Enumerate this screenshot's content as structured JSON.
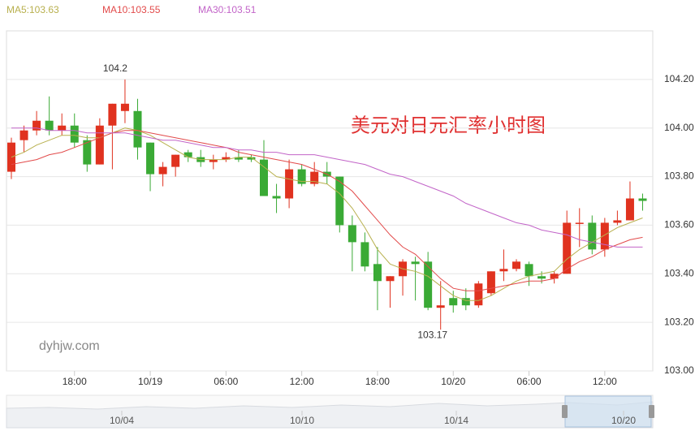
{
  "chart_data": {
    "type": "candlestick",
    "title": "美元对日元汇率小时图",
    "watermark": "dyhjw.com",
    "categories": [
      null,
      null,
      null,
      null,
      null,
      "18:00",
      null,
      null,
      null,
      null,
      null,
      "10/19",
      null,
      null,
      null,
      null,
      null,
      "06:00",
      null,
      null,
      null,
      null,
      null,
      "12:00",
      null,
      null,
      null,
      null,
      null,
      "18:00",
      null,
      null,
      null,
      null,
      null,
      "10/20",
      null,
      null,
      null,
      null,
      null,
      "06:00",
      null,
      null,
      null,
      null,
      null,
      "12:00",
      null,
      null,
      null
    ],
    "open": [
      103.82,
      103.95,
      103.99,
      104.03,
      103.99,
      104.01,
      103.95,
      103.85,
      104.01,
      104.07,
      104.07,
      103.94,
      103.81,
      103.84,
      103.9,
      103.88,
      103.86,
      103.87,
      103.88,
      103.88,
      103.87,
      103.72,
      103.71,
      103.83,
      103.77,
      103.82,
      103.8,
      103.6,
      103.53,
      103.44,
      103.37,
      103.39,
      103.45,
      103.45,
      103.26,
      103.3,
      103.3,
      103.27,
      103.32,
      103.41,
      103.42,
      103.44,
      103.39,
      103.38,
      103.4,
      103.61,
      103.61,
      103.5,
      103.61,
      103.62,
      103.71
    ],
    "close": [
      103.94,
      103.99,
      104.03,
      103.99,
      104.01,
      103.94,
      103.85,
      104.01,
      104.1,
      104.1,
      103.92,
      103.81,
      103.84,
      103.89,
      103.88,
      103.86,
      103.87,
      103.88,
      103.87,
      103.87,
      103.72,
      103.71,
      103.83,
      103.77,
      103.82,
      103.8,
      103.6,
      103.53,
      103.43,
      103.37,
      103.39,
      103.45,
      103.44,
      103.26,
      103.27,
      103.27,
      103.27,
      103.36,
      103.41,
      103.42,
      103.45,
      103.39,
      103.38,
      103.4,
      103.61,
      103.61,
      103.5,
      103.61,
      103.62,
      103.71,
      103.7
    ],
    "high": [
      103.96,
      104.01,
      104.07,
      104.13,
      104.06,
      104.06,
      103.97,
      104.04,
      104.1,
      104.2,
      104.12,
      103.94,
      103.86,
      103.89,
      103.91,
      103.91,
      103.89,
      103.9,
      103.91,
      103.89,
      103.95,
      103.77,
      103.87,
      103.85,
      103.86,
      103.86,
      103.8,
      103.64,
      103.57,
      103.51,
      103.39,
      103.46,
      103.47,
      103.49,
      103.37,
      103.33,
      103.34,
      103.37,
      103.41,
      103.5,
      103.46,
      103.45,
      103.41,
      103.41,
      103.66,
      103.67,
      103.64,
      103.63,
      103.66,
      103.78,
      103.73
    ],
    "low": [
      103.79,
      103.9,
      103.97,
      103.97,
      103.97,
      103.92,
      103.82,
      103.85,
      103.83,
      104.02,
      103.87,
      103.74,
      103.76,
      103.8,
      103.86,
      103.84,
      103.83,
      103.86,
      103.86,
      103.86,
      103.72,
      103.65,
      103.67,
      103.76,
      103.76,
      103.77,
      103.57,
      103.41,
      103.41,
      103.25,
      103.26,
      103.31,
      103.29,
      103.25,
      103.17,
      103.24,
      103.25,
      103.26,
      103.31,
      103.37,
      103.41,
      103.35,
      103.36,
      103.36,
      103.4,
      103.51,
      103.48,
      103.47,
      103.6,
      103.62,
      103.66
    ],
    "up_color": "#e0321f",
    "down_color": "#3aaa35",
    "max_label": "104.2",
    "min_label": "103.17",
    "series": [
      {
        "name": "MA5:103.63",
        "color": "#b8b04e",
        "values": [
          103.88,
          103.9,
          103.93,
          103.95,
          103.97,
          103.97,
          103.96,
          103.96,
          103.98,
          104.0,
          103.99,
          103.97,
          103.94,
          103.91,
          103.88,
          103.87,
          103.87,
          103.87,
          103.88,
          103.88,
          103.84,
          103.8,
          103.79,
          103.78,
          103.78,
          103.77,
          103.73,
          103.67,
          103.59,
          103.5,
          103.44,
          103.42,
          103.41,
          103.39,
          103.35,
          103.31,
          103.29,
          103.29,
          103.31,
          103.34,
          103.37,
          103.39,
          103.4,
          103.41,
          103.46,
          103.5,
          103.53,
          103.56,
          103.59,
          103.61,
          103.63
        ]
      },
      {
        "name": "MA10:103.55",
        "color": "#e24a4a",
        "values": [
          103.85,
          103.86,
          103.87,
          103.89,
          103.9,
          103.92,
          103.94,
          103.96,
          103.98,
          103.99,
          103.99,
          103.98,
          103.97,
          103.96,
          103.95,
          103.94,
          103.93,
          103.92,
          103.9,
          103.89,
          103.88,
          103.87,
          103.86,
          103.85,
          103.83,
          103.81,
          103.78,
          103.74,
          103.68,
          103.62,
          103.56,
          103.51,
          103.48,
          103.43,
          103.38,
          103.34,
          103.33,
          103.33,
          103.34,
          103.35,
          103.36,
          103.37,
          103.37,
          103.38,
          103.42,
          103.45,
          103.47,
          103.5,
          103.52,
          103.54,
          103.55
        ]
      },
      {
        "name": "MA30:103.51",
        "color": "#c264c8",
        "values": [
          104.0,
          104.0,
          104.0,
          103.99,
          103.99,
          103.99,
          103.98,
          103.98,
          103.98,
          103.98,
          103.97,
          103.96,
          103.95,
          103.95,
          103.94,
          103.93,
          103.92,
          103.92,
          103.91,
          103.91,
          103.9,
          103.9,
          103.89,
          103.89,
          103.89,
          103.88,
          103.87,
          103.86,
          103.85,
          103.83,
          103.81,
          103.8,
          103.78,
          103.76,
          103.74,
          103.72,
          103.69,
          103.67,
          103.65,
          103.63,
          103.61,
          103.6,
          103.58,
          103.57,
          103.56,
          103.54,
          103.53,
          103.52,
          103.51,
          103.51,
          103.51
        ]
      }
    ],
    "ylim": [
      103.0,
      104.4
    ],
    "yticks": [
      {
        "value": 103.0,
        "label": "103.00"
      },
      {
        "value": 103.2,
        "label": "103.20"
      },
      {
        "value": 103.4,
        "label": "103.40"
      },
      {
        "value": 103.6,
        "label": "103.60"
      },
      {
        "value": 103.8,
        "label": "103.80"
      },
      {
        "value": 104.0,
        "label": "104.00"
      },
      {
        "value": 104.2,
        "label": "104.20"
      }
    ],
    "grid": true,
    "navigator": {
      "labels": [
        "10/04",
        "10/10",
        "10/14",
        "10/20"
      ]
    }
  }
}
